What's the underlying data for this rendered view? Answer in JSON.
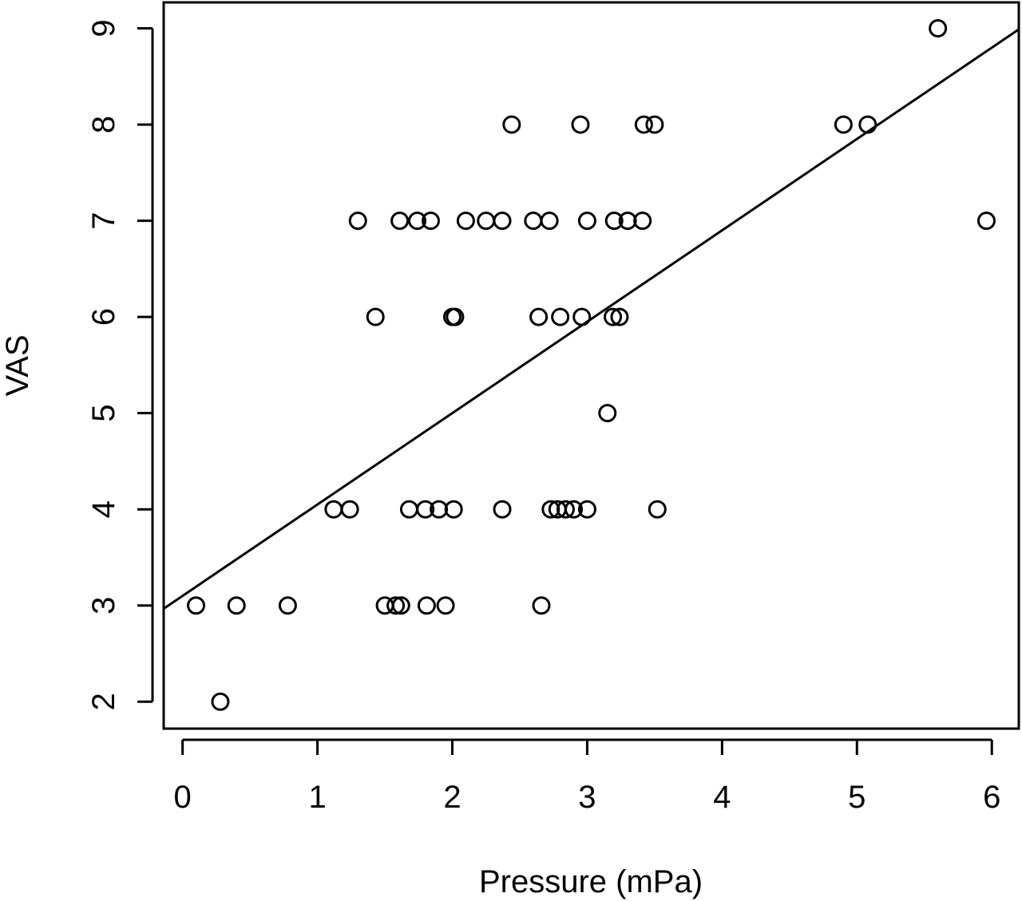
{
  "chart_data": {
    "type": "scatter",
    "xlabel": "Pressure (mPa)",
    "ylabel": "VAS",
    "xlim": [
      -0.14,
      6.2
    ],
    "ylim": [
      1.72,
      9.27
    ],
    "x_ticks": [
      0,
      1,
      2,
      3,
      4,
      5,
      6
    ],
    "y_ticks": [
      2,
      3,
      4,
      5,
      6,
      7,
      8,
      9
    ],
    "grid": false,
    "legend": "none",
    "points": [
      {
        "x": 5.6,
        "y": 9
      },
      {
        "x": 2.44,
        "y": 8
      },
      {
        "x": 2.95,
        "y": 8
      },
      {
        "x": 3.42,
        "y": 8
      },
      {
        "x": 3.5,
        "y": 8
      },
      {
        "x": 4.9,
        "y": 8
      },
      {
        "x": 5.08,
        "y": 8
      },
      {
        "x": 1.3,
        "y": 7
      },
      {
        "x": 1.61,
        "y": 7
      },
      {
        "x": 1.74,
        "y": 7
      },
      {
        "x": 1.84,
        "y": 7
      },
      {
        "x": 2.1,
        "y": 7
      },
      {
        "x": 2.25,
        "y": 7
      },
      {
        "x": 2.37,
        "y": 7
      },
      {
        "x": 2.6,
        "y": 7
      },
      {
        "x": 2.72,
        "y": 7
      },
      {
        "x": 3.0,
        "y": 7
      },
      {
        "x": 3.2,
        "y": 7
      },
      {
        "x": 3.3,
        "y": 7
      },
      {
        "x": 3.41,
        "y": 7
      },
      {
        "x": 5.96,
        "y": 7
      },
      {
        "x": 1.43,
        "y": 6
      },
      {
        "x": 2.0,
        "y": 6
      },
      {
        "x": 2.02,
        "y": 6
      },
      {
        "x": 2.64,
        "y": 6
      },
      {
        "x": 2.8,
        "y": 6
      },
      {
        "x": 2.96,
        "y": 6
      },
      {
        "x": 3.19,
        "y": 6
      },
      {
        "x": 3.24,
        "y": 6
      },
      {
        "x": 3.15,
        "y": 5
      },
      {
        "x": 1.12,
        "y": 4
      },
      {
        "x": 1.24,
        "y": 4
      },
      {
        "x": 1.68,
        "y": 4
      },
      {
        "x": 1.8,
        "y": 4
      },
      {
        "x": 1.9,
        "y": 4
      },
      {
        "x": 2.01,
        "y": 4
      },
      {
        "x": 2.37,
        "y": 4
      },
      {
        "x": 2.73,
        "y": 4
      },
      {
        "x": 2.78,
        "y": 4
      },
      {
        "x": 2.84,
        "y": 4
      },
      {
        "x": 2.9,
        "y": 4
      },
      {
        "x": 3.0,
        "y": 4
      },
      {
        "x": 3.52,
        "y": 4
      },
      {
        "x": 0.1,
        "y": 3
      },
      {
        "x": 0.4,
        "y": 3
      },
      {
        "x": 0.78,
        "y": 3
      },
      {
        "x": 1.5,
        "y": 3
      },
      {
        "x": 1.58,
        "y": 3
      },
      {
        "x": 1.62,
        "y": 3
      },
      {
        "x": 1.81,
        "y": 3
      },
      {
        "x": 1.95,
        "y": 3
      },
      {
        "x": 2.66,
        "y": 3
      },
      {
        "x": 0.28,
        "y": 2
      }
    ],
    "regression_line": {
      "intercept": 3.1,
      "slope": 0.95
    }
  }
}
